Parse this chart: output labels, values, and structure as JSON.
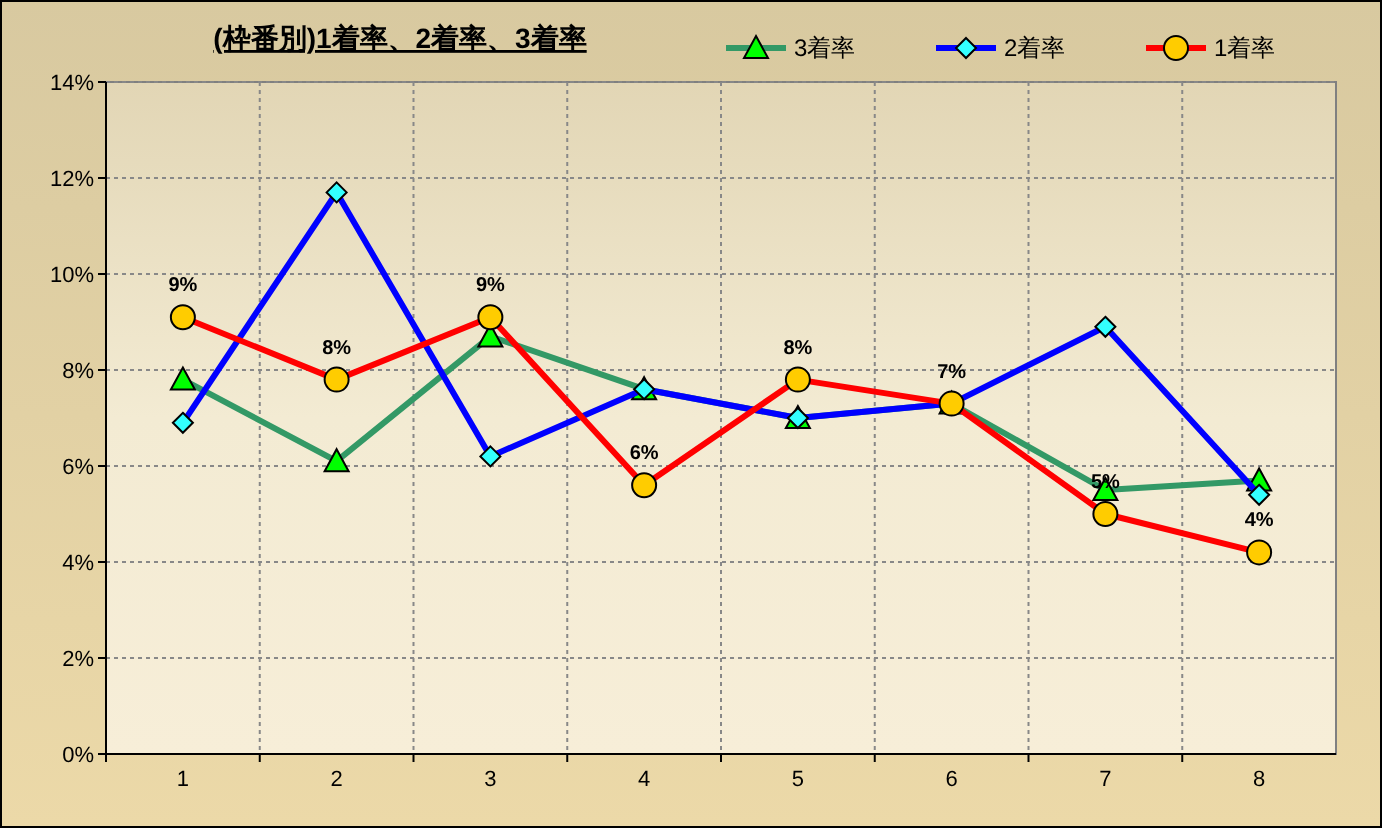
{
  "chart_data": {
    "type": "line",
    "title": "(枠番別)1着率、2着率、3着率",
    "categories": [
      "1",
      "2",
      "3",
      "4",
      "5",
      "6",
      "7",
      "8"
    ],
    "series": [
      {
        "name": "3着率",
        "color": "#339966",
        "marker": "triangle",
        "values": [
          7.8,
          6.1,
          8.7,
          7.6,
          7.0,
          7.3,
          5.5,
          5.7
        ]
      },
      {
        "name": "2着率",
        "color": "#0000ff",
        "marker": "diamond",
        "values": [
          6.9,
          11.7,
          6.2,
          7.6,
          7.0,
          7.3,
          8.9,
          5.4
        ]
      },
      {
        "name": "1着率",
        "color": "#ff0000",
        "marker": "circle",
        "values": [
          9.1,
          7.8,
          9.1,
          5.6,
          7.8,
          7.3,
          5.0,
          4.2
        ],
        "value_labels": [
          "9%",
          "8%",
          "9%",
          "6%",
          "8%",
          "7%",
          "5%",
          "4%"
        ]
      }
    ],
    "ylim": [
      0,
      14
    ],
    "yticks": [
      {
        "value": 0,
        "label": "0%"
      },
      {
        "value": 2,
        "label": "2%"
      },
      {
        "value": 4,
        "label": "4%"
      },
      {
        "value": 6,
        "label": "6%"
      },
      {
        "value": 8,
        "label": "8%"
      },
      {
        "value": 10,
        "label": "10%"
      },
      {
        "value": 12,
        "label": "12%"
      },
      {
        "value": 14,
        "label": "14%"
      }
    ],
    "grid": true,
    "legend": "top right"
  }
}
